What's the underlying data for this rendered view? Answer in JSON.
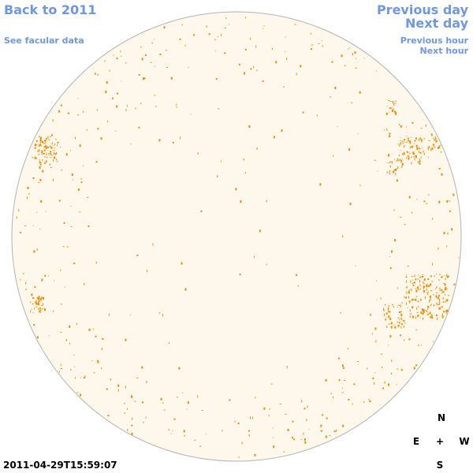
{
  "nav": {
    "back_label": "Back to 2011",
    "facular_label": "See facular data",
    "prev_day_label": "Previous day",
    "next_day_label": "Next day",
    "prev_hour_label": "Previous hour",
    "next_hour_label": "Next hour"
  },
  "image": {
    "timestamp": "2011-04-29T15:59:07",
    "disk_fill": "#fdf8eb",
    "disk_stroke": "#b3b3b3",
    "feature_color": "#f08c00"
  },
  "compass": {
    "north": "N",
    "south": "S",
    "east": "E",
    "west": "W",
    "center": "+"
  }
}
